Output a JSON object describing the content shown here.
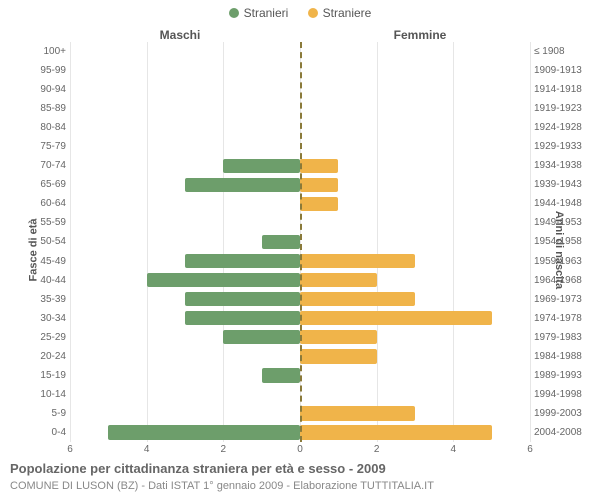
{
  "legend": {
    "male": {
      "label": "Stranieri",
      "color": "#6d9e6b"
    },
    "female": {
      "label": "Straniere",
      "color": "#f0b44a"
    }
  },
  "column_titles": {
    "left": "Maschi",
    "right": "Femmine"
  },
  "axis_titles": {
    "left": "Fasce di età",
    "right": "Anni di nascita"
  },
  "caption": "Popolazione per cittadinanza straniera per età e sesso - 2009",
  "subcaption": "COMUNE DI LUSON (BZ) - Dati ISTAT 1° gennaio 2009 - Elaborazione TUTTITALIA.IT",
  "chart": {
    "type": "population-pyramid",
    "xmax": 6,
    "xticks": [
      0,
      2,
      4,
      6
    ],
    "bar_colors": {
      "male": "#6d9e6b",
      "female": "#f0b44a"
    },
    "background_color": "#ffffff",
    "grid_color": "#e6e6e6",
    "center_line_color": "#8a7a3a",
    "label_fontsize": 10,
    "title_fontsize": 13,
    "rows": [
      {
        "age": "100+",
        "birth": "≤ 1908",
        "m": 0,
        "f": 0
      },
      {
        "age": "95-99",
        "birth": "1909-1913",
        "m": 0,
        "f": 0
      },
      {
        "age": "90-94",
        "birth": "1914-1918",
        "m": 0,
        "f": 0
      },
      {
        "age": "85-89",
        "birth": "1919-1923",
        "m": 0,
        "f": 0
      },
      {
        "age": "80-84",
        "birth": "1924-1928",
        "m": 0,
        "f": 0
      },
      {
        "age": "75-79",
        "birth": "1929-1933",
        "m": 0,
        "f": 0
      },
      {
        "age": "70-74",
        "birth": "1934-1938",
        "m": 2,
        "f": 1
      },
      {
        "age": "65-69",
        "birth": "1939-1943",
        "m": 3,
        "f": 1
      },
      {
        "age": "60-64",
        "birth": "1944-1948",
        "m": 0,
        "f": 1
      },
      {
        "age": "55-59",
        "birth": "1949-1953",
        "m": 0,
        "f": 0
      },
      {
        "age": "50-54",
        "birth": "1954-1958",
        "m": 1,
        "f": 0
      },
      {
        "age": "45-49",
        "birth": "1959-1963",
        "m": 3,
        "f": 3
      },
      {
        "age": "40-44",
        "birth": "1964-1968",
        "m": 4,
        "f": 2
      },
      {
        "age": "35-39",
        "birth": "1969-1973",
        "m": 3,
        "f": 3
      },
      {
        "age": "30-34",
        "birth": "1974-1978",
        "m": 3,
        "f": 5
      },
      {
        "age": "25-29",
        "birth": "1979-1983",
        "m": 2,
        "f": 2
      },
      {
        "age": "20-24",
        "birth": "1984-1988",
        "m": 0,
        "f": 2
      },
      {
        "age": "15-19",
        "birth": "1989-1993",
        "m": 1,
        "f": 0
      },
      {
        "age": "10-14",
        "birth": "1994-1998",
        "m": 0,
        "f": 0
      },
      {
        "age": "5-9",
        "birth": "1999-2003",
        "m": 0,
        "f": 3
      },
      {
        "age": "0-4",
        "birth": "2004-2008",
        "m": 5,
        "f": 5
      }
    ]
  }
}
